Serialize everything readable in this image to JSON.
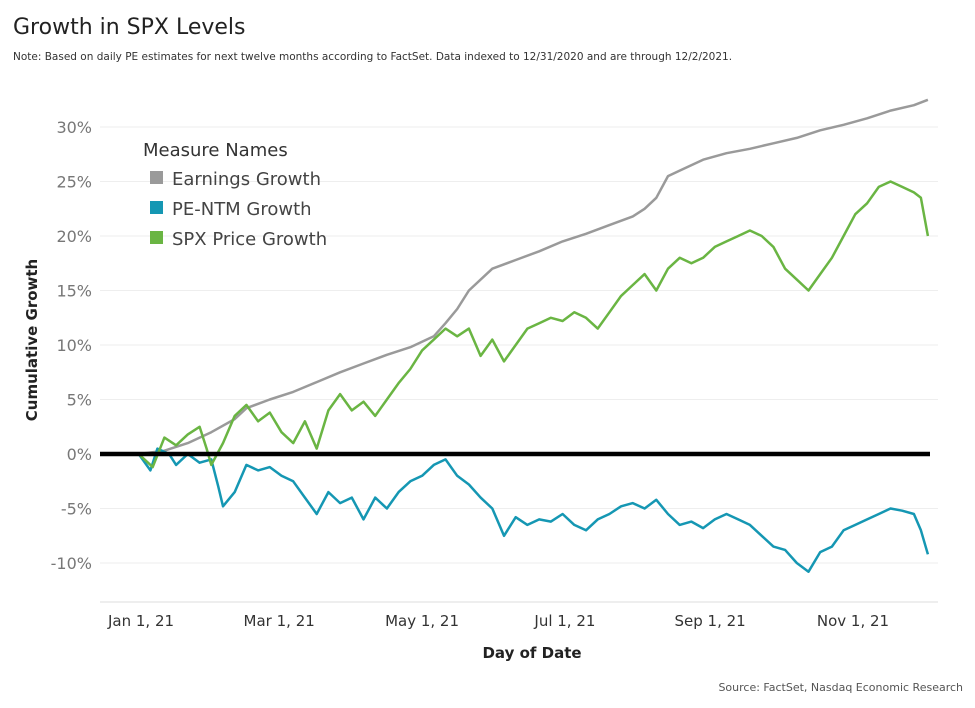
{
  "title": "Growth in SPX Levels",
  "note": "Note: Based on daily PE estimates for next twelve months according to FactSet. Data indexed to 12/31/2020 and are through 12/2/2021.",
  "source": "Source: FactSet, Nasdaq Economic Research",
  "chart_data": {
    "type": "line",
    "title": "Growth in SPX Levels",
    "xlabel": "Day of Date",
    "ylabel": "Cumulative Growth",
    "xlim": [
      "2020-12-31",
      "2021-12-02"
    ],
    "ylim": [
      -13,
      34
    ],
    "x_ticks": [
      "Jan 1, 21",
      "Mar 1, 21",
      "May 1, 21",
      "Jul 1, 21",
      "Sep 1, 21",
      "Nov 1, 21"
    ],
    "y_ticks": [
      "30%",
      "25%",
      "20%",
      "15%",
      "10%",
      "5%",
      "0%",
      "-5%",
      "-10%"
    ],
    "y_tick_values": [
      30,
      25,
      20,
      15,
      10,
      5,
      0,
      -5,
      -10
    ],
    "legend_title": "Measure Names",
    "legend_position": "top-left",
    "x_unit": "days since Jan 1, 2021",
    "series": [
      {
        "name": "Earnings Growth",
        "color": "#9a9a9a",
        "points": [
          [
            -1,
            0
          ],
          [
            10,
            0.3
          ],
          [
            20,
            1.0
          ],
          [
            30,
            2.0
          ],
          [
            40,
            3.2
          ],
          [
            45,
            4.2
          ],
          [
            55,
            5.0
          ],
          [
            65,
            5.7
          ],
          [
            75,
            6.6
          ],
          [
            85,
            7.5
          ],
          [
            95,
            8.3
          ],
          [
            105,
            9.1
          ],
          [
            115,
            9.8
          ],
          [
            125,
            10.8
          ],
          [
            130,
            12.0
          ],
          [
            135,
            13.3
          ],
          [
            140,
            15.0
          ],
          [
            150,
            17.0
          ],
          [
            160,
            17.8
          ],
          [
            170,
            18.6
          ],
          [
            180,
            19.5
          ],
          [
            190,
            20.2
          ],
          [
            200,
            21.0
          ],
          [
            210,
            21.8
          ],
          [
            215,
            22.5
          ],
          [
            220,
            23.5
          ],
          [
            225,
            25.5
          ],
          [
            230,
            26.0
          ],
          [
            240,
            27.0
          ],
          [
            250,
            27.6
          ],
          [
            260,
            28.0
          ],
          [
            270,
            28.5
          ],
          [
            280,
            29.0
          ],
          [
            290,
            29.7
          ],
          [
            300,
            30.2
          ],
          [
            310,
            30.8
          ],
          [
            320,
            31.5
          ],
          [
            330,
            32.0
          ],
          [
            336,
            32.5
          ]
        ]
      },
      {
        "name": "PE-NTM Growth",
        "color": "#1597b3",
        "points": [
          [
            -1,
            0
          ],
          [
            4,
            -1.5
          ],
          [
            7,
            0.5
          ],
          [
            12,
            0
          ],
          [
            15,
            -1
          ],
          [
            20,
            0
          ],
          [
            25,
            -0.8
          ],
          [
            30,
            -0.5
          ],
          [
            33,
            -3.0
          ],
          [
            35,
            -4.8
          ],
          [
            40,
            -3.5
          ],
          [
            45,
            -1.0
          ],
          [
            50,
            -1.5
          ],
          [
            55,
            -1.2
          ],
          [
            60,
            -2.0
          ],
          [
            65,
            -2.5
          ],
          [
            70,
            -4.0
          ],
          [
            75,
            -5.5
          ],
          [
            80,
            -3.5
          ],
          [
            85,
            -4.5
          ],
          [
            90,
            -4.0
          ],
          [
            95,
            -6.0
          ],
          [
            100,
            -4.0
          ],
          [
            105,
            -5.0
          ],
          [
            110,
            -3.5
          ],
          [
            115,
            -2.5
          ],
          [
            120,
            -2.0
          ],
          [
            125,
            -1.0
          ],
          [
            130,
            -0.5
          ],
          [
            135,
            -2.0
          ],
          [
            140,
            -2.8
          ],
          [
            145,
            -4.0
          ],
          [
            150,
            -5.0
          ],
          [
            155,
            -7.5
          ],
          [
            160,
            -5.8
          ],
          [
            165,
            -6.5
          ],
          [
            170,
            -6.0
          ],
          [
            175,
            -6.2
          ],
          [
            180,
            -5.5
          ],
          [
            185,
            -6.5
          ],
          [
            190,
            -7.0
          ],
          [
            195,
            -6.0
          ],
          [
            200,
            -5.5
          ],
          [
            205,
            -4.8
          ],
          [
            210,
            -4.5
          ],
          [
            215,
            -5.0
          ],
          [
            220,
            -4.2
          ],
          [
            225,
            -5.5
          ],
          [
            230,
            -6.5
          ],
          [
            235,
            -6.2
          ],
          [
            240,
            -6.8
          ],
          [
            245,
            -6.0
          ],
          [
            250,
            -5.5
          ],
          [
            255,
            -6.0
          ],
          [
            260,
            -6.5
          ],
          [
            265,
            -7.5
          ],
          [
            270,
            -8.5
          ],
          [
            275,
            -8.8
          ],
          [
            280,
            -10.0
          ],
          [
            285,
            -10.8
          ],
          [
            290,
            -9.0
          ],
          [
            295,
            -8.5
          ],
          [
            300,
            -7.0
          ],
          [
            305,
            -6.5
          ],
          [
            310,
            -6.0
          ],
          [
            315,
            -5.5
          ],
          [
            320,
            -5.0
          ],
          [
            325,
            -5.2
          ],
          [
            330,
            -5.5
          ],
          [
            333,
            -7.0
          ],
          [
            336,
            -9.2
          ]
        ]
      },
      {
        "name": "SPX Price Growth",
        "color": "#6ab543",
        "points": [
          [
            -1,
            0
          ],
          [
            5,
            -1.2
          ],
          [
            10,
            1.5
          ],
          [
            15,
            0.8
          ],
          [
            20,
            1.8
          ],
          [
            25,
            2.5
          ],
          [
            28,
            0.5
          ],
          [
            30,
            -1.0
          ],
          [
            35,
            1.0
          ],
          [
            40,
            3.5
          ],
          [
            45,
            4.5
          ],
          [
            50,
            3.0
          ],
          [
            55,
            3.8
          ],
          [
            60,
            2.0
          ],
          [
            65,
            1.0
          ],
          [
            70,
            3.0
          ],
          [
            75,
            0.5
          ],
          [
            80,
            4.0
          ],
          [
            85,
            5.5
          ],
          [
            90,
            4.0
          ],
          [
            95,
            4.8
          ],
          [
            100,
            3.5
          ],
          [
            105,
            5.0
          ],
          [
            110,
            6.5
          ],
          [
            115,
            7.8
          ],
          [
            120,
            9.5
          ],
          [
            125,
            10.5
          ],
          [
            130,
            11.5
          ],
          [
            135,
            10.8
          ],
          [
            140,
            11.5
          ],
          [
            145,
            9.0
          ],
          [
            150,
            10.5
          ],
          [
            155,
            8.5
          ],
          [
            160,
            10.0
          ],
          [
            165,
            11.5
          ],
          [
            170,
            12.0
          ],
          [
            175,
            12.5
          ],
          [
            180,
            12.2
          ],
          [
            185,
            13.0
          ],
          [
            190,
            12.5
          ],
          [
            195,
            11.5
          ],
          [
            200,
            13.0
          ],
          [
            205,
            14.5
          ],
          [
            210,
            15.5
          ],
          [
            215,
            16.5
          ],
          [
            220,
            15.0
          ],
          [
            225,
            17.0
          ],
          [
            230,
            18.0
          ],
          [
            235,
            17.5
          ],
          [
            240,
            18.0
          ],
          [
            245,
            19.0
          ],
          [
            250,
            19.5
          ],
          [
            255,
            20.0
          ],
          [
            260,
            20.5
          ],
          [
            265,
            20.0
          ],
          [
            270,
            19.0
          ],
          [
            275,
            17.0
          ],
          [
            280,
            16.0
          ],
          [
            285,
            15.0
          ],
          [
            290,
            16.5
          ],
          [
            295,
            18.0
          ],
          [
            300,
            20.0
          ],
          [
            305,
            22.0
          ],
          [
            310,
            23.0
          ],
          [
            315,
            24.5
          ],
          [
            320,
            25.0
          ],
          [
            325,
            24.5
          ],
          [
            330,
            24.0
          ],
          [
            333,
            23.5
          ],
          [
            336,
            20.0
          ]
        ]
      }
    ]
  }
}
